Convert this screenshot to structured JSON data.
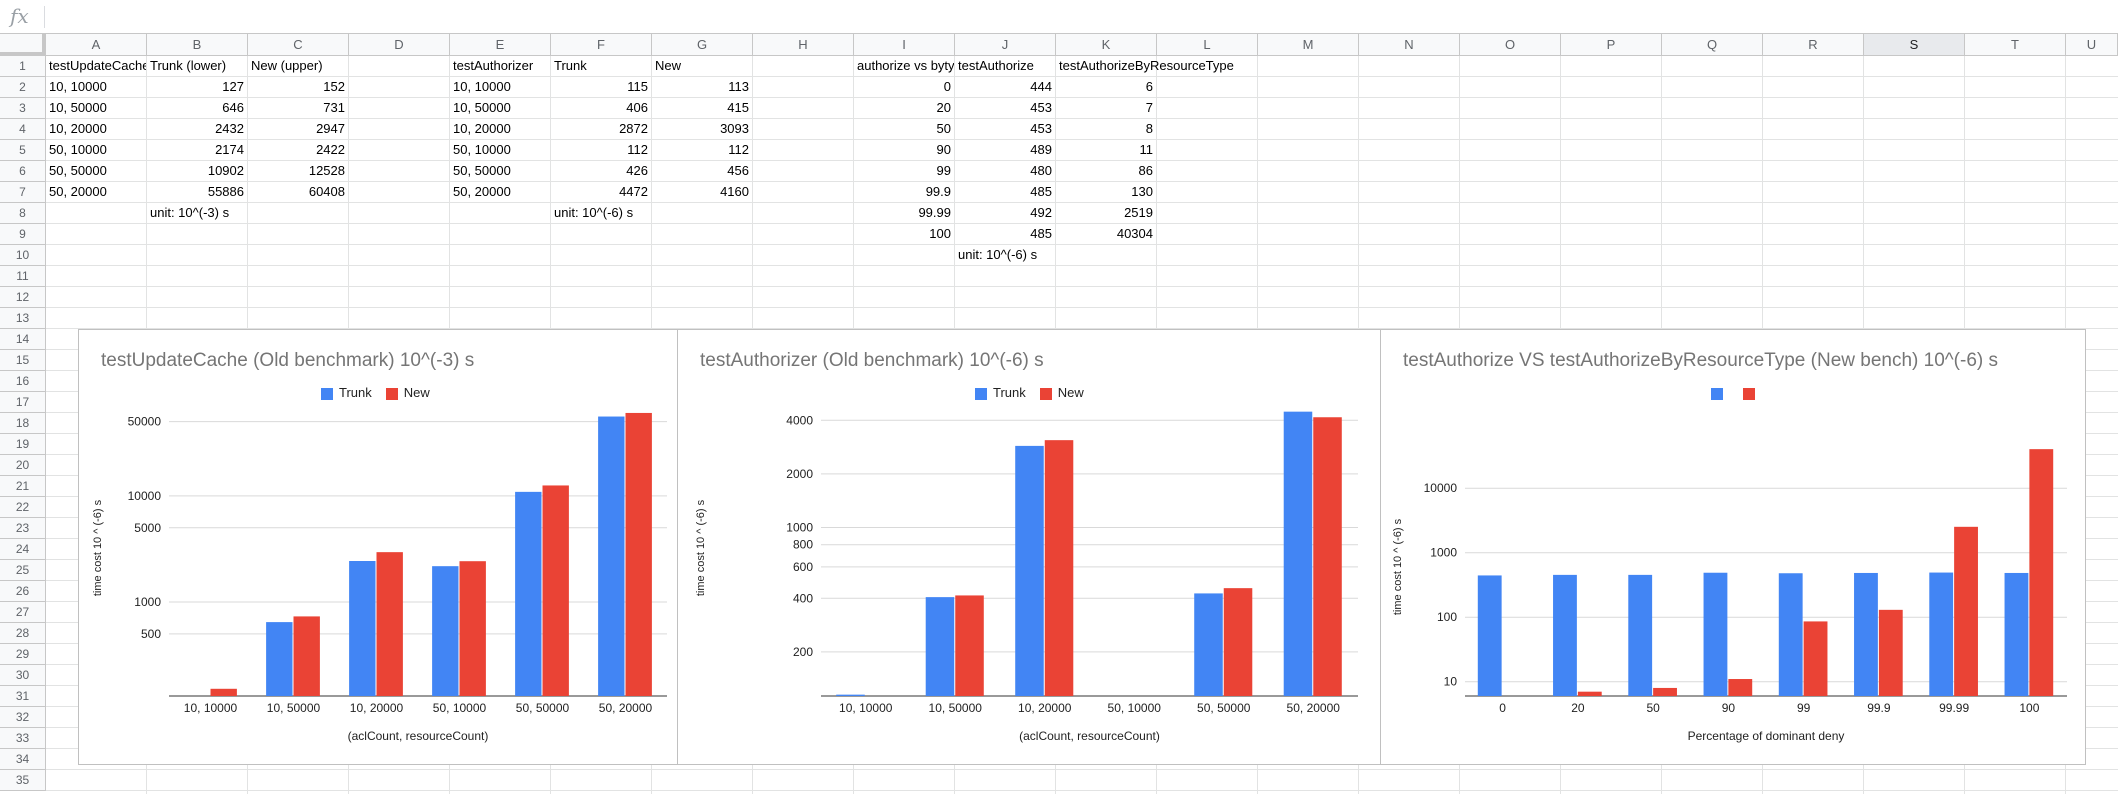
{
  "formula_bar": {
    "icon": "fx"
  },
  "columns": [
    "A",
    "B",
    "C",
    "D",
    "E",
    "F",
    "G",
    "H",
    "I",
    "J",
    "K",
    "L",
    "M",
    "N",
    "O",
    "P",
    "Q",
    "R",
    "S",
    "T",
    "U"
  ],
  "selected_column": "S",
  "rows": [
    "1",
    "2",
    "3",
    "4",
    "5",
    "6",
    "7",
    "8",
    "9",
    "10",
    "11",
    "12",
    "13",
    "14",
    "15",
    "16",
    "17",
    "18",
    "19",
    "20",
    "21",
    "22",
    "23",
    "24",
    "25",
    "26",
    "27",
    "28",
    "29",
    "30",
    "31",
    "32",
    "33",
    "34",
    "35"
  ],
  "cells": {
    "A1": "testUpdateCache",
    "B1": "Trunk (lower)",
    "C1": "New (upper)",
    "E1": "testAuthorizer",
    "F1": "Trunk",
    "G1": "New",
    "I1": "authorize vs byty",
    "J1": "testAuthorize",
    "K1": "testAuthorizeByResourceType",
    "A2": "10, 10000",
    "B2": "127",
    "C2": "152",
    "E2": "10, 10000",
    "F2": "115",
    "G2": "113",
    "I2": "0",
    "J2": "444",
    "K2": "6",
    "A3": "10, 50000",
    "B3": "646",
    "C3": "731",
    "E3": "10, 50000",
    "F3": "406",
    "G3": "415",
    "I3": "20",
    "J3": "453",
    "K3": "7",
    "A4": "10, 20000",
    "B4": "2432",
    "C4": "2947",
    "E4": "10, 20000",
    "F4": "2872",
    "G4": "3093",
    "I4": "50",
    "J4": "453",
    "K4": "8",
    "A5": "50, 10000",
    "B5": "2174",
    "C5": "2422",
    "E5": "50, 10000",
    "F5": "112",
    "G5": "112",
    "I5": "90",
    "J5": "489",
    "K5": "11",
    "A6": "50, 50000",
    "B6": "10902",
    "C6": "12528",
    "E6": "50, 50000",
    "F6": "426",
    "G6": "456",
    "I6": "99",
    "J6": "480",
    "K6": "86",
    "A7": "50, 20000",
    "B7": "55886",
    "C7": "60408",
    "E7": "50, 20000",
    "F7": "4472",
    "G7": "4160",
    "I7": "99.9",
    "J7": "485",
    "K7": "130",
    "B8": "unit: 10^(-3) s",
    "F8": "unit: 10^(-6) s",
    "I8": "99.99",
    "J8": "492",
    "K8": "2519",
    "I9": "100",
    "J9": "485",
    "K9": "40304",
    "J10": "unit: 10^(-6) s"
  },
  "chart_data": [
    {
      "type": "bar",
      "title": "testUpdateCache (Old benchmark) 10^(-3) s",
      "xlabel": "(aclCount, resourceCount)",
      "ylabel": "time cost 10 ^ (-6) s",
      "scale": "log",
      "categories": [
        "10, 10000",
        "10, 50000",
        "10, 20000",
        "50, 10000",
        "50, 50000",
        "50, 20000"
      ],
      "series": [
        {
          "name": "Trunk",
          "color": "#4285f4",
          "values": [
            127,
            646,
            2432,
            2174,
            10902,
            55886
          ]
        },
        {
          "name": "New",
          "color": "#ea4335",
          "values": [
            152,
            731,
            2947,
            2422,
            12528,
            60408
          ]
        }
      ],
      "ylim": [
        130,
        80000
      ],
      "yticks": [
        500,
        1000,
        5000,
        10000,
        50000
      ],
      "ytick_labels": [
        "500",
        "1000",
        "5000",
        "10000",
        "50000"
      ],
      "legend": "top"
    },
    {
      "type": "bar",
      "title": "testAuthorizer (Old benchmark) 10^(-6) s",
      "xlabel": "(aclCount, resourceCount)",
      "ylabel": "time cost 10 ^ (-6) s",
      "scale": "log",
      "categories": [
        "10, 10000",
        "10, 50000",
        "10, 20000",
        "50, 10000",
        "50, 50000",
        "50, 20000"
      ],
      "series": [
        {
          "name": "Trunk",
          "color": "#4285f4",
          "values": [
            115,
            406,
            2872,
            112,
            426,
            4472
          ]
        },
        {
          "name": "New",
          "color": "#ea4335",
          "values": [
            113,
            415,
            3093,
            112,
            456,
            4160
          ]
        }
      ],
      "ylim": [
        113,
        5200
      ],
      "yticks": [
        200,
        400,
        600,
        800,
        1000,
        2000,
        4000
      ],
      "ytick_labels": [
        "200",
        "400",
        "600",
        "800",
        "1000",
        "2000",
        "4000"
      ],
      "legend": "top"
    },
    {
      "type": "bar",
      "title": "testAuthorize VS testAuthorizeByResourceType (New bench) 10^(-6) s",
      "xlabel": "Percentage of dominant deny",
      "ylabel": "time cost 10 ^ (-6) s",
      "scale": "log",
      "categories": [
        "0",
        "20",
        "50",
        "90",
        "99",
        "99.9",
        "99.99",
        "100"
      ],
      "series": [
        {
          "color": "#4285f4",
          "values": [
            444,
            453,
            453,
            489,
            480,
            485,
            492,
            485
          ]
        },
        {
          "color": "#ea4335",
          "values": [
            6,
            7,
            8,
            11,
            86,
            130,
            2519,
            40304
          ]
        }
      ],
      "ylim": [
        6,
        60000
      ],
      "yticks": [
        10,
        100,
        1000,
        10000
      ],
      "ytick_labels": [
        "10",
        "100",
        "1000",
        "10000"
      ],
      "legend": "top"
    }
  ]
}
